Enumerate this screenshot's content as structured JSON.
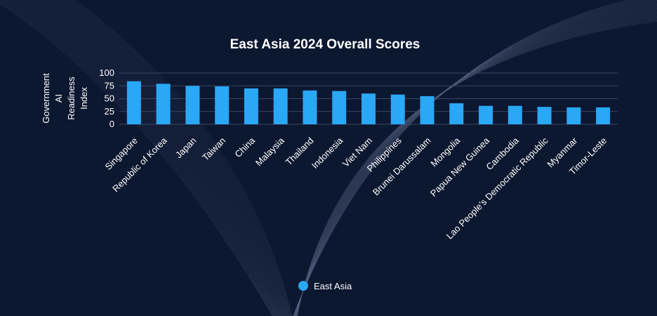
{
  "colors": {
    "background": "#0c1730",
    "bar": "#2aa7f5",
    "grid": "#3a4763",
    "text": "#ffffff",
    "decor": "#5b6a88"
  },
  "chart_data": {
    "type": "bar",
    "title": "East Asia 2024 Overall Scores",
    "ylabel_lines": [
      "Government",
      "AI",
      "Readiness",
      "Index"
    ],
    "xlabel": "",
    "ylim": [
      0,
      100
    ],
    "yticks": [
      0,
      25,
      50,
      75,
      100
    ],
    "grid": true,
    "legend_position": "bottom-center",
    "categories": [
      "Singapore",
      "Republic of Korea",
      "Japan",
      "Taiwan",
      "China",
      "Malaysia",
      "Thailand",
      "Indonesia",
      "Viet Nam",
      "Philippines",
      "Brunei Darussalam",
      "Mongolia",
      "Papua New Guinea",
      "Cambodia",
      "Lao People’s Democratic Republic",
      "Myanmar",
      "Timor-Leste"
    ],
    "series": [
      {
        "name": "East Asia",
        "values": [
          84,
          79,
          75,
          74,
          70,
          70,
          66,
          65,
          60,
          58,
          55,
          41,
          36,
          36,
          34,
          33,
          33
        ]
      }
    ]
  }
}
